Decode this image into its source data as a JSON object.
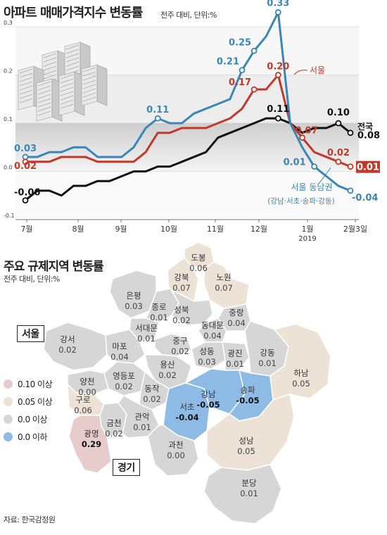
{
  "chart_title": "아파트 매매가격지수 변동률",
  "chart_subtitle": "전주 대비, 단위:%",
  "map_title": "주요 규제지역 변동률",
  "map_subtitle": "전주 대비, 단위:%",
  "source": "자료: 한국감정원",
  "chart_data": {
    "type": "line",
    "title": "아파트 매매가격지수 변동률",
    "subtitle": "전주 대비, 단위:%",
    "ylim": [
      -0.1,
      0.3
    ],
    "y_ticks": [
      "0.3",
      "0.2",
      "0.1",
      "0.0",
      "-0.1"
    ],
    "x_tick_labels": [
      "7월",
      "8월",
      "9월",
      "10월",
      "11월",
      "12월",
      "1월",
      "2월3일"
    ],
    "x_year_label": "2019",
    "series": [
      {
        "name": "서울 동남권",
        "note": "(강남·서초·송파·강동)",
        "color": "#3a86b4",
        "values": [
          0.03,
          0.03,
          0.04,
          0.04,
          0.05,
          0.05,
          0.03,
          0.03,
          0.03,
          0.05,
          0.09,
          0.11,
          0.1,
          0.1,
          0.12,
          0.13,
          0.14,
          0.15,
          0.21,
          0.25,
          0.28,
          0.33,
          0.1,
          0.05,
          0.01,
          -0.01,
          -0.03,
          -0.04
        ]
      },
      {
        "name": "서울",
        "color": "#c0392b",
        "values": [
          0.02,
          0.02,
          0.02,
          0.03,
          0.03,
          0.03,
          0.02,
          0.02,
          0.02,
          0.02,
          0.04,
          0.08,
          0.08,
          0.09,
          0.09,
          0.09,
          0.1,
          0.11,
          0.13,
          0.17,
          0.17,
          0.2,
          0.1,
          0.07,
          0.04,
          0.03,
          0.02,
          0.01
        ]
      },
      {
        "name": "전국",
        "color": "#111111",
        "values": [
          -0.06,
          -0.04,
          -0.04,
          -0.05,
          -0.03,
          -0.03,
          -0.02,
          -0.02,
          -0.01,
          0.0,
          0.0,
          0.01,
          0.01,
          0.02,
          0.03,
          0.04,
          0.07,
          0.08,
          0.09,
          0.1,
          0.11,
          0.11,
          0.1,
          0.08,
          0.09,
          0.09,
          0.1,
          0.08
        ]
      }
    ],
    "data_labels": [
      {
        "series": "서울 동남권",
        "index": 0,
        "text": "0.03"
      },
      {
        "series": "서울 동남권",
        "index": 11,
        "text": "0.11"
      },
      {
        "series": "서울 동남권",
        "index": 18,
        "text": "0.21"
      },
      {
        "series": "서울 동남권",
        "index": 19,
        "text": "0.25"
      },
      {
        "series": "서울 동남권",
        "index": 21,
        "text": "0.33"
      },
      {
        "series": "서울 동남권",
        "index": 24,
        "text": "0.01"
      },
      {
        "series": "서울 동남권",
        "index": 27,
        "text": "-0.04"
      },
      {
        "series": "서울",
        "index": 0,
        "text": "0.02"
      },
      {
        "series": "서울",
        "index": 19,
        "text": "0.17"
      },
      {
        "series": "서울",
        "index": 21,
        "text": "0.20"
      },
      {
        "series": "서울",
        "index": 23,
        "text": "0.07"
      },
      {
        "series": "서울",
        "index": 26,
        "text": "0.02"
      },
      {
        "series": "서울",
        "index": 27,
        "text": "0.01"
      },
      {
        "series": "전국",
        "index": 0,
        "text": "-0.06"
      },
      {
        "series": "전국",
        "index": 21,
        "text": "0.11"
      },
      {
        "series": "전국",
        "index": 26,
        "text": "0.10"
      },
      {
        "series": "전국",
        "index": 27,
        "text": "0.08"
      }
    ]
  },
  "map": {
    "legend": [
      {
        "label": "0.10 이상",
        "color": "#e8cccc"
      },
      {
        "label": "0.05 이상",
        "color": "#ece2d6"
      },
      {
        "label": "0.0 이상",
        "color": "#d6d6d6"
      },
      {
        "label": "0.0 이하",
        "color": "#8ebbe6"
      }
    ],
    "region_tags": {
      "seoul": "서울",
      "gyeonggi": "경기"
    },
    "districts": [
      {
        "name": "도봉",
        "value": "0.06",
        "cls": "beige"
      },
      {
        "name": "강북",
        "value": "0.07",
        "cls": "beige"
      },
      {
        "name": "노원",
        "value": "0.07",
        "cls": "beige"
      },
      {
        "name": "은평",
        "value": "0.03",
        "cls": "gray"
      },
      {
        "name": "종로",
        "value": "0.01",
        "cls": "gray"
      },
      {
        "name": "성북",
        "value": "0.02",
        "cls": "gray"
      },
      {
        "name": "중랑",
        "value": "0.04",
        "cls": "gray"
      },
      {
        "name": "서대문",
        "value": "0.01",
        "cls": "gray"
      },
      {
        "name": "동대문",
        "value": "0.04",
        "cls": "gray"
      },
      {
        "name": "강서",
        "value": "0.02",
        "cls": "gray"
      },
      {
        "name": "마포",
        "value": "0.04",
        "cls": "gray"
      },
      {
        "name": "중구",
        "value": "0.02",
        "cls": "gray"
      },
      {
        "name": "성동",
        "value": "0.03",
        "cls": "gray"
      },
      {
        "name": "광진",
        "value": "0.01",
        "cls": "gray"
      },
      {
        "name": "강동",
        "value": "0.01",
        "cls": "gray"
      },
      {
        "name": "용산",
        "value": "0.02",
        "cls": "gray"
      },
      {
        "name": "양천",
        "value": "0.00",
        "cls": "gray"
      },
      {
        "name": "영등포",
        "value": "0.02",
        "cls": "gray"
      },
      {
        "name": "동작",
        "value": "0.02",
        "cls": "gray"
      },
      {
        "name": "구로",
        "value": "0.06",
        "cls": "beige"
      },
      {
        "name": "금천",
        "value": "0.02",
        "cls": "gray"
      },
      {
        "name": "관악",
        "value": "0.01",
        "cls": "gray"
      },
      {
        "name": "서초",
        "value": "-0.04",
        "cls": "blue"
      },
      {
        "name": "강남",
        "value": "-0.05",
        "cls": "blue"
      },
      {
        "name": "송파",
        "value": "-0.05",
        "cls": "blue"
      },
      {
        "name": "하남",
        "value": "0.05",
        "cls": "beige"
      },
      {
        "name": "광명",
        "value": "0.29",
        "cls": "pink"
      },
      {
        "name": "과천",
        "value": "0.00",
        "cls": "gray"
      },
      {
        "name": "성남",
        "value": "0.05",
        "cls": "beige"
      },
      {
        "name": "분당",
        "value": "0.01",
        "cls": "gray"
      }
    ]
  }
}
